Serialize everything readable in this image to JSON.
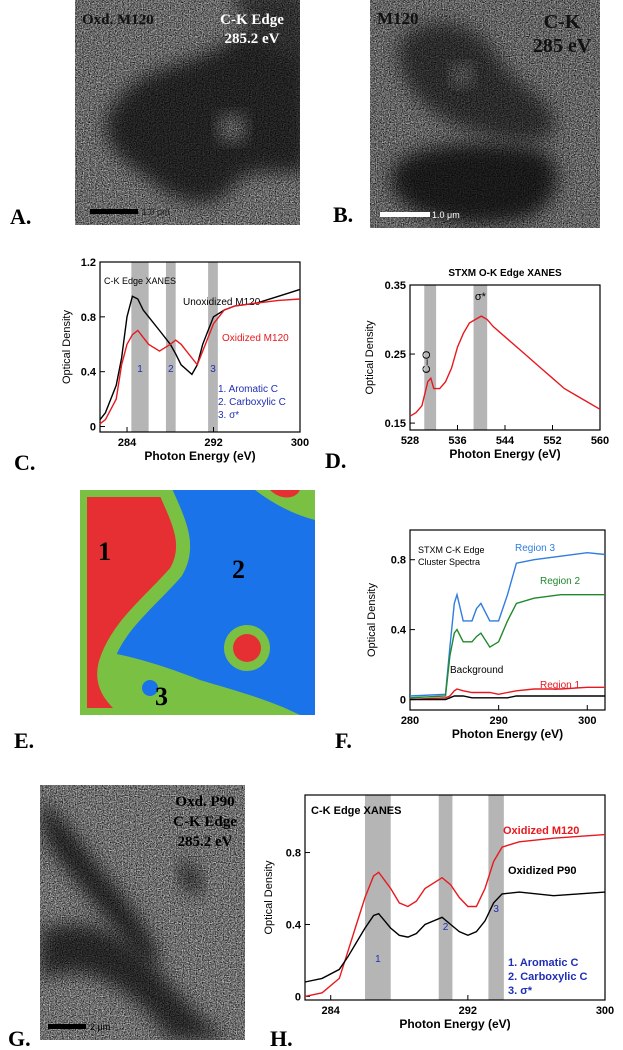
{
  "images": [
    {
      "label": "A.",
      "texts": [
        "Oxd. M120",
        "C-K Edge",
        "285.2 eV"
      ],
      "scale": "1.0 μm"
    },
    {
      "label": "B.",
      "texts": [
        "M120",
        "C-K",
        "285 eV"
      ],
      "scale": "1.0 μm"
    },
    {
      "label": "G.",
      "texts": [
        "Oxd. P90",
        "C-K Edge",
        "285.2 eV"
      ],
      "scale": "2 μm"
    }
  ],
  "cluster_map": {
    "label": "E.",
    "regions": [
      "1",
      "2",
      "3"
    ]
  },
  "chart_data": [
    {
      "type": "line",
      "label": "C.",
      "title": "C-K Edge XANES",
      "xlabel": "Photon Energy (eV)",
      "ylabel": "Optical Density",
      "x": [
        281.5,
        282,
        283,
        283.5,
        284,
        284.5,
        285,
        285.5,
        286,
        287,
        288,
        288.5,
        289,
        290,
        290.5,
        291,
        292,
        293,
        294,
        296,
        298,
        300
      ],
      "series": [
        {
          "name": "Unoxidized M120",
          "color": "#000000",
          "values": [
            0.05,
            0.1,
            0.3,
            0.5,
            0.8,
            0.95,
            0.93,
            0.85,
            0.8,
            0.7,
            0.6,
            0.53,
            0.45,
            0.38,
            0.45,
            0.6,
            0.8,
            0.85,
            0.88,
            0.9,
            0.95,
            1.0
          ]
        },
        {
          "name": "Oxidized M120",
          "color": "#e8191e",
          "values": [
            0.02,
            0.05,
            0.2,
            0.45,
            0.6,
            0.67,
            0.7,
            0.65,
            0.6,
            0.55,
            0.6,
            0.63,
            0.6,
            0.5,
            0.45,
            0.55,
            0.75,
            0.85,
            0.88,
            0.9,
            0.92,
            0.93
          ]
        }
      ],
      "xlim": [
        281.5,
        300
      ],
      "ylim": [
        -0.04,
        1.2
      ],
      "xticks": [
        284,
        292,
        300
      ],
      "yticks": [
        0,
        0.4,
        0.8,
        1.2
      ],
      "bands": [
        [
          284.4,
          286.0
        ],
        [
          287.6,
          288.5
        ],
        [
          291.5,
          292.4
        ]
      ],
      "band_labels": [
        "1",
        "2",
        "3"
      ],
      "notes": [
        "1. Aromatic C",
        "2. Carboxylic C",
        "3. σ*"
      ]
    },
    {
      "type": "line",
      "label": "D.",
      "title": "STXM O-K Edge XANES",
      "xlabel": "Photon Energy (eV)",
      "ylabel": "Optical Density",
      "x": [
        528,
        529,
        530,
        531,
        531.5,
        532,
        533,
        534,
        535,
        536,
        537,
        538,
        539,
        540,
        541,
        542,
        544,
        546,
        548,
        550,
        552,
        554,
        556,
        558,
        560
      ],
      "series": [
        {
          "name": null,
          "color": "#e8191e",
          "values": [
            0.16,
            0.165,
            0.175,
            0.21,
            0.215,
            0.2,
            0.2,
            0.21,
            0.23,
            0.26,
            0.28,
            0.295,
            0.3,
            0.305,
            0.3,
            0.29,
            0.275,
            0.26,
            0.245,
            0.23,
            0.215,
            0.2,
            0.19,
            0.18,
            0.17
          ]
        }
      ],
      "xlim": [
        528,
        560
      ],
      "ylim": [
        0.14,
        0.35
      ],
      "xticks": [
        528,
        536,
        544,
        552,
        560
      ],
      "yticks": [
        0.15,
        0.25,
        0.35
      ],
      "bands": [
        [
          530.4,
          532.4
        ],
        [
          538.7,
          541
        ]
      ],
      "band_labels": [
        "C–O",
        "σ*"
      ]
    },
    {
      "type": "line",
      "label": "F.",
      "title": "STXM C-K Edge",
      "subtitle": "Cluster Spectra",
      "xlabel": "Photon Energy (eV)",
      "ylabel": "Optical Density",
      "x": [
        280,
        284,
        284.5,
        285,
        285.3,
        286,
        287,
        287.5,
        288,
        289,
        290,
        291,
        292,
        294,
        297,
        300,
        302
      ],
      "series": [
        {
          "name": "Region 3",
          "color": "#2f7de1",
          "values": [
            0.02,
            0.03,
            0.3,
            0.55,
            0.6,
            0.45,
            0.45,
            0.52,
            0.55,
            0.45,
            0.45,
            0.6,
            0.78,
            0.8,
            0.82,
            0.84,
            0.83
          ]
        },
        {
          "name": "Region 2",
          "color": "#1f8a2a",
          "values": [
            0.01,
            0.02,
            0.25,
            0.38,
            0.4,
            0.33,
            0.33,
            0.36,
            0.38,
            0.3,
            0.33,
            0.45,
            0.55,
            0.58,
            0.6,
            0.6,
            0.6
          ]
        },
        {
          "name": "Region 1",
          "color": "#e8191e",
          "values": [
            0,
            0.01,
            0.02,
            0.05,
            0.06,
            0.05,
            0.04,
            0.04,
            0.04,
            0.04,
            0.03,
            0.04,
            0.05,
            0.06,
            0.06,
            0.07,
            0.07
          ]
        },
        {
          "name": "Background",
          "color": "#000000",
          "values": [
            0,
            0,
            0.01,
            0.02,
            0.02,
            0.02,
            0.01,
            0.01,
            0.01,
            0.01,
            0.01,
            0.01,
            0.02,
            0.02,
            0.02,
            0.02,
            0.02
          ]
        }
      ],
      "xlim": [
        280,
        302
      ],
      "ylim": [
        -0.06,
        0.97
      ],
      "xticks": [
        280,
        290,
        300
      ],
      "yticks": [
        0,
        0.4,
        0.8
      ]
    },
    {
      "type": "line",
      "label": "H.",
      "title": "C-K Edge XANES",
      "xlabel": "Photon Energy (eV)",
      "ylabel": "Optical Density",
      "x": [
        282.5,
        283.5,
        284.5,
        285,
        285.5,
        286,
        286.5,
        286.8,
        287.5,
        288,
        288.5,
        289,
        289.5,
        290.5,
        291,
        291.5,
        292,
        292.5,
        293,
        293.5,
        294,
        295,
        297,
        300
      ],
      "series": [
        {
          "name": "Oxidized M120",
          "color": "#e8191e",
          "values": [
            0,
            0.02,
            0.1,
            0.25,
            0.4,
            0.55,
            0.67,
            0.69,
            0.6,
            0.52,
            0.5,
            0.53,
            0.6,
            0.66,
            0.62,
            0.55,
            0.5,
            0.5,
            0.6,
            0.75,
            0.83,
            0.86,
            0.88,
            0.9
          ]
        },
        {
          "name": "Oxidized P90",
          "color": "#000000",
          "values": [
            0.08,
            0.1,
            0.15,
            0.22,
            0.3,
            0.38,
            0.45,
            0.46,
            0.38,
            0.34,
            0.33,
            0.35,
            0.4,
            0.44,
            0.4,
            0.36,
            0.34,
            0.36,
            0.42,
            0.52,
            0.57,
            0.58,
            0.56,
            0.58
          ]
        }
      ],
      "xlim": [
        282.5,
        300
      ],
      "ylim": [
        -0.02,
        1.12
      ],
      "xticks": [
        284,
        292,
        300
      ],
      "yticks": [
        0,
        0.4,
        0.8
      ],
      "bands": [
        [
          286.0,
          287.5
        ],
        [
          290.3,
          291.1
        ],
        [
          293.2,
          294.1
        ]
      ],
      "band_labels": [
        "1",
        "2",
        "3"
      ],
      "notes": [
        "1. Aromatic C",
        "2. Carboxylic C",
        "3. σ*"
      ]
    }
  ]
}
